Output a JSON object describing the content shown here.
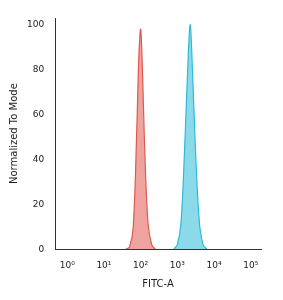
{
  "chart_data": {
    "type": "line",
    "x_label": "FITC-A",
    "y_label": "Normalized To Mode",
    "log": "x",
    "grid": false,
    "xlim": [
      0.47,
      190000
    ],
    "xticks": [
      {
        "value": 1,
        "label": "10⁰"
      },
      {
        "value": 10,
        "label": "10¹"
      },
      {
        "value": 100,
        "label": "10²"
      },
      {
        "value": 1000,
        "label": "10³"
      },
      {
        "value": 10000,
        "label": "10⁴"
      },
      {
        "value": 100000,
        "label": "10⁵"
      }
    ],
    "ylim": [
      0,
      103
    ],
    "yticks": [
      0,
      20,
      40,
      60,
      80,
      100
    ],
    "series": [
      {
        "color": "#e0584f",
        "x": [
          40,
          50,
          63,
          79,
          89,
          100,
          112,
          126,
          158,
          200,
          250
        ],
        "values": [
          0,
          1,
          10,
          55,
          85,
          98,
          80,
          50,
          12,
          2,
          0
        ]
      },
      {
        "color": "#2bbbd8",
        "x": [
          800,
          1000,
          1260,
          1580,
          2000,
          2240,
          2510,
          3160,
          3980,
          5010,
          6310
        ],
        "values": [
          0,
          2,
          12,
          45,
          88,
          100,
          85,
          42,
          12,
          2,
          0
        ]
      }
    ]
  }
}
